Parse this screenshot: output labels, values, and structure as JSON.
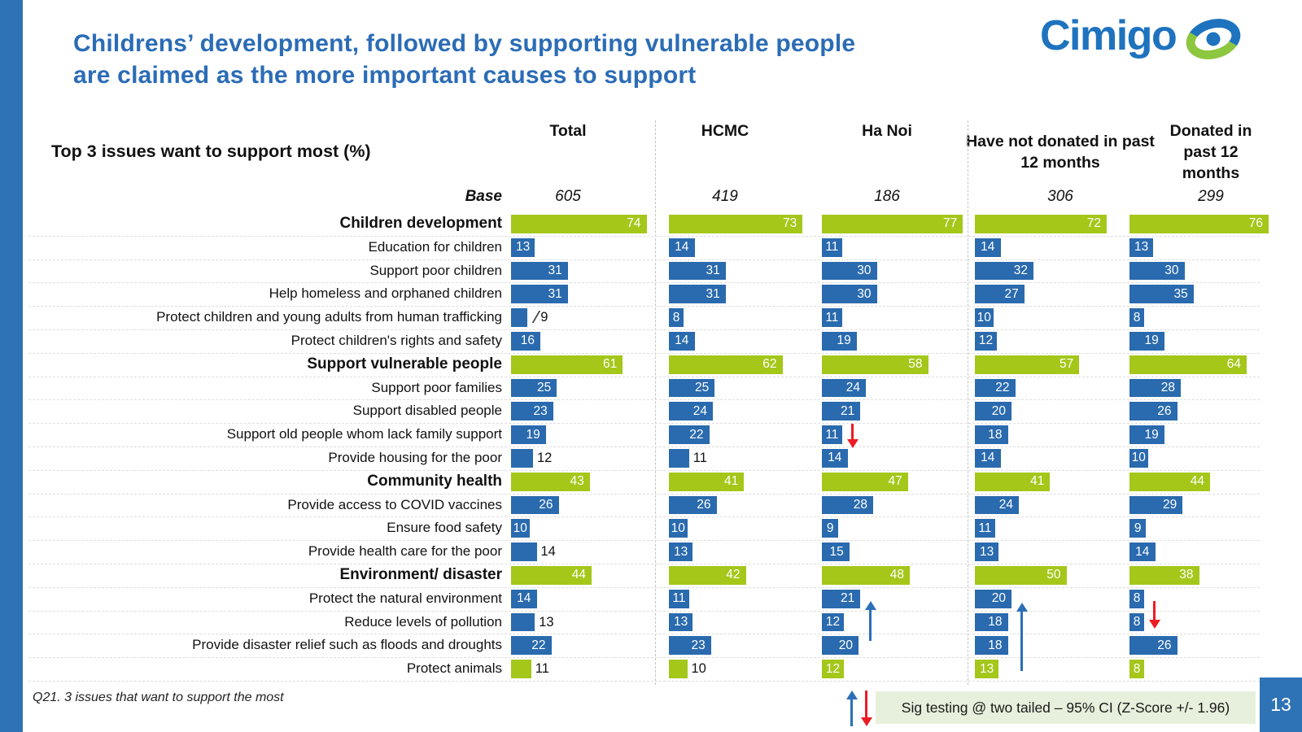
{
  "slide": {
    "title_line1": "Childrens’ development, followed by supporting vulnerable people",
    "title_line2": "are claimed as the more important causes to support",
    "logo_text": "Cimigo",
    "page_number": "13",
    "footnote": "Q21. 3 issues that want to support the most",
    "sig_legend": "Sig testing @ two tailed – 95% CI (Z-Score +/- 1.96)"
  },
  "table": {
    "caption": "Top 3 issues want to support most (%)",
    "base_label": "Base",
    "columns": [
      {
        "label": "Total",
        "base": "605"
      },
      {
        "label": "HCMC",
        "base": "419"
      },
      {
        "label": "Ha Noi",
        "base": "186"
      },
      {
        "label": "Have not donated in past 12 months",
        "base": "306"
      },
      {
        "label": "Donated in past 12 months",
        "base": "299"
      }
    ],
    "rows": [
      {
        "label": "Children development",
        "style": "section",
        "values": [
          74,
          73,
          77,
          72,
          76
        ]
      },
      {
        "label": "Education for children",
        "style": "item",
        "values": [
          13,
          14,
          11,
          14,
          13
        ]
      },
      {
        "label": "Support poor children",
        "style": "item",
        "values": [
          31,
          31,
          30,
          32,
          30
        ]
      },
      {
        "label": "Help homeless and orphaned children",
        "style": "item",
        "values": [
          31,
          31,
          30,
          27,
          35
        ]
      },
      {
        "label": "Protect children and young adults from human trafficking",
        "style": "item",
        "values": [
          9,
          8,
          11,
          10,
          8
        ],
        "outside": [
          0
        ],
        "leader": [
          0
        ]
      },
      {
        "label": "Protect children's rights and safety",
        "style": "item",
        "values": [
          16,
          14,
          19,
          12,
          19
        ]
      },
      {
        "label": "Support vulnerable people",
        "style": "section",
        "values": [
          61,
          62,
          58,
          57,
          64
        ]
      },
      {
        "label": "Support poor families",
        "style": "item",
        "values": [
          25,
          25,
          24,
          22,
          28
        ]
      },
      {
        "label": "Support disabled people",
        "style": "item",
        "values": [
          23,
          24,
          21,
          20,
          26
        ]
      },
      {
        "label": "Support old people whom lack family support",
        "style": "item",
        "values": [
          19,
          22,
          11,
          18,
          19
        ]
      },
      {
        "label": "Provide housing for the poor",
        "style": "item",
        "values": [
          12,
          11,
          14,
          14,
          10
        ],
        "outside": [
          0,
          1
        ]
      },
      {
        "label": "Community health",
        "style": "section",
        "values": [
          43,
          41,
          47,
          41,
          44
        ]
      },
      {
        "label": "Provide access to COVID vaccines",
        "style": "item",
        "values": [
          26,
          26,
          28,
          24,
          29
        ]
      },
      {
        "label": "Ensure food safety",
        "style": "item",
        "values": [
          10,
          10,
          9,
          11,
          9
        ]
      },
      {
        "label": "Provide health care for the poor",
        "style": "item",
        "values": [
          14,
          13,
          15,
          13,
          14
        ],
        "outside": [
          0
        ]
      },
      {
        "label": "Environment/ disaster",
        "style": "section",
        "values": [
          44,
          42,
          48,
          50,
          38
        ]
      },
      {
        "label": "Protect the natural environment",
        "style": "item",
        "values": [
          14,
          11,
          21,
          20,
          8
        ]
      },
      {
        "label": "Reduce levels of pollution",
        "style": "item",
        "values": [
          13,
          13,
          12,
          18,
          8
        ],
        "outside": [
          0
        ]
      },
      {
        "label": "Provide disaster relief such as floods and droughts",
        "style": "item",
        "values": [
          22,
          23,
          20,
          18,
          26
        ]
      },
      {
        "label": "Protect animals",
        "style": "green-item",
        "values": [
          11,
          10,
          12,
          13,
          8
        ],
        "outside": [
          0,
          1
        ]
      }
    ]
  },
  "annotations": [
    {
      "id": "old-people-hanoi-down",
      "row": "Support old people whom lack family support",
      "column": "Ha Noi",
      "direction": "down"
    },
    {
      "id": "environment-hanoi-up",
      "row": "Environment/ disaster",
      "column": "Ha Noi",
      "direction": "up"
    },
    {
      "id": "environment-notdonated-up",
      "row": "Environment/ disaster",
      "column": "Have not donated in past 12 months",
      "direction": "up"
    },
    {
      "id": "environment-donated-down",
      "row": "Environment/ disaster",
      "column": "Donated in past 12 months",
      "direction": "down"
    }
  ],
  "colors": {
    "title_blue": "#2B6CB5",
    "accent_blue": "#2E73B5",
    "bar_blue": "#2A6AAE",
    "bar_green": "#A4C71A",
    "logo_blue": "#1E73BE",
    "logo_green": "#8DC63F",
    "sig_bg": "#E7F0DC",
    "arrow_up_blue": "#2B6FB7",
    "arrow_down_red": "#EC1C24"
  },
  "chart_data": {
    "type": "bar",
    "title": "Top 3 issues want to support most (%)",
    "unit": "%",
    "xlim": [
      0,
      100
    ],
    "categories": [
      "Children development",
      "Education for children",
      "Support poor children",
      "Help homeless and orphaned children",
      "Protect children and young adults from human trafficking",
      "Protect children's rights and safety",
      "Support vulnerable people",
      "Support poor families",
      "Support disabled people",
      "Support old people whom lack family support",
      "Provide housing for the poor",
      "Community health",
      "Provide access to COVID vaccines",
      "Ensure food safety",
      "Provide health care for the poor",
      "Environment/ disaster",
      "Protect the natural environment",
      "Reduce levels of pollution",
      "Provide disaster relief such as floods and droughts",
      "Protect animals"
    ],
    "section_rows": [
      "Children development",
      "Support vulnerable people",
      "Community health",
      "Environment/ disaster",
      "Protect animals"
    ],
    "series": [
      {
        "name": "Total",
        "base": 605,
        "values": [
          74,
          13,
          31,
          31,
          9,
          16,
          61,
          25,
          23,
          19,
          12,
          43,
          26,
          10,
          14,
          44,
          14,
          13,
          22,
          11
        ]
      },
      {
        "name": "HCMC",
        "base": 419,
        "values": [
          73,
          14,
          31,
          31,
          8,
          14,
          62,
          25,
          24,
          22,
          11,
          41,
          26,
          10,
          13,
          42,
          11,
          13,
          23,
          10
        ]
      },
      {
        "name": "Ha Noi",
        "base": 186,
        "values": [
          77,
          11,
          30,
          30,
          11,
          19,
          58,
          24,
          21,
          11,
          14,
          47,
          28,
          9,
          15,
          48,
          21,
          12,
          20,
          12
        ]
      },
      {
        "name": "Have not donated in past 12 months",
        "base": 306,
        "values": [
          72,
          14,
          32,
          27,
          10,
          12,
          57,
          22,
          20,
          18,
          14,
          41,
          24,
          11,
          13,
          50,
          20,
          18,
          18,
          13
        ]
      },
      {
        "name": "Donated in past 12 months",
        "base": 299,
        "values": [
          76,
          13,
          30,
          35,
          8,
          19,
          64,
          28,
          26,
          19,
          10,
          44,
          29,
          9,
          14,
          38,
          8,
          8,
          26,
          8
        ]
      }
    ],
    "significance": [
      {
        "category": "Support old people whom lack family support",
        "series": "Ha Noi",
        "direction": "lower"
      },
      {
        "category": "Environment/ disaster",
        "series": "Ha Noi",
        "direction": "higher"
      },
      {
        "category": "Environment/ disaster",
        "series": "Have not donated in past 12 months",
        "direction": "higher"
      },
      {
        "category": "Environment/ disaster",
        "series": "Donated in past 12 months",
        "direction": "lower"
      }
    ],
    "legend": {
      "up_arrow": "significantly higher",
      "down_arrow": "significantly lower",
      "position": "bottom-right"
    }
  }
}
